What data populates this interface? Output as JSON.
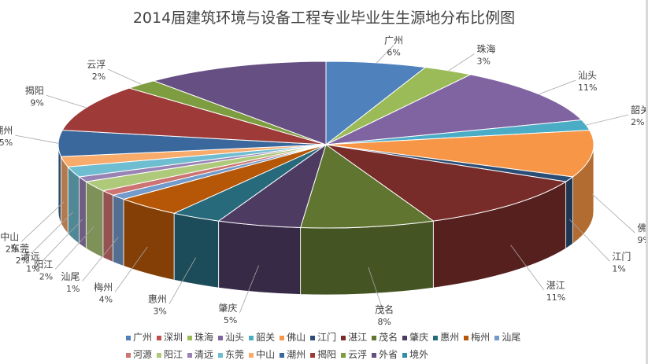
{
  "chart_data": {
    "type": "pie",
    "title": "2014届建筑环境与设备工程专业毕业生生源地分布比例图",
    "style": "3d-exploded",
    "slices": [
      {
        "label": "广州",
        "value": 6,
        "pct": "6%",
        "color": "#4f81bd"
      },
      {
        "label": "深圳",
        "value": 0,
        "pct": "",
        "color": "#c0504d"
      },
      {
        "label": "珠海",
        "value": 3,
        "pct": "3%",
        "color": "#9bbb59"
      },
      {
        "label": "汕头",
        "value": 11,
        "pct": "11%",
        "color": "#8064a2"
      },
      {
        "label": "韶关",
        "value": 2,
        "pct": "2%",
        "color": "#4bacc6"
      },
      {
        "label": "佛山",
        "value": 9,
        "pct": "9%",
        "color": "#f79646"
      },
      {
        "label": "江门",
        "value": 1,
        "pct": "1%",
        "color": "#2c4d75"
      },
      {
        "label": "湛江",
        "value": 11,
        "pct": "11%",
        "color": "#772c2a"
      },
      {
        "label": "茂名",
        "value": 8,
        "pct": "8%",
        "color": "#5f7530"
      },
      {
        "label": "肇庆",
        "value": 5,
        "pct": "5%",
        "color": "#4d3b62"
      },
      {
        "label": "惠州",
        "value": 3,
        "pct": "3%",
        "color": "#276a7c"
      },
      {
        "label": "梅州",
        "value": 4,
        "pct": "4%",
        "color": "#b65708"
      },
      {
        "label": "汕尾",
        "value": 1,
        "pct": "1%",
        "color": "#729aca"
      },
      {
        "label": "河源",
        "value": 1,
        "pct": "",
        "color": "#cd7371"
      },
      {
        "label": "阳江",
        "value": 2,
        "pct": "2%",
        "color": "#afc97a"
      },
      {
        "label": "清远",
        "value": 1,
        "pct": "1%",
        "color": "#9983b5"
      },
      {
        "label": "东莞",
        "value": 2,
        "pct": "2%",
        "color": "#6fbdd1"
      },
      {
        "label": "中山",
        "value": 2,
        "pct": "2%",
        "color": "#f9ab6b"
      },
      {
        "label": "潮州",
        "value": 5,
        "pct": "5%",
        "color": "#3a679c"
      },
      {
        "label": "揭阳",
        "value": 9,
        "pct": "9%",
        "color": "#9e3b38"
      },
      {
        "label": "云浮",
        "value": 2,
        "pct": "2%",
        "color": "#7e9c40"
      },
      {
        "label": "外省",
        "value": 11,
        "pct": "",
        "color": "#664f83"
      },
      {
        "label": "境外",
        "value": 0,
        "pct": "",
        "color": "#358ea6"
      }
    ],
    "legend_position": "bottom"
  }
}
